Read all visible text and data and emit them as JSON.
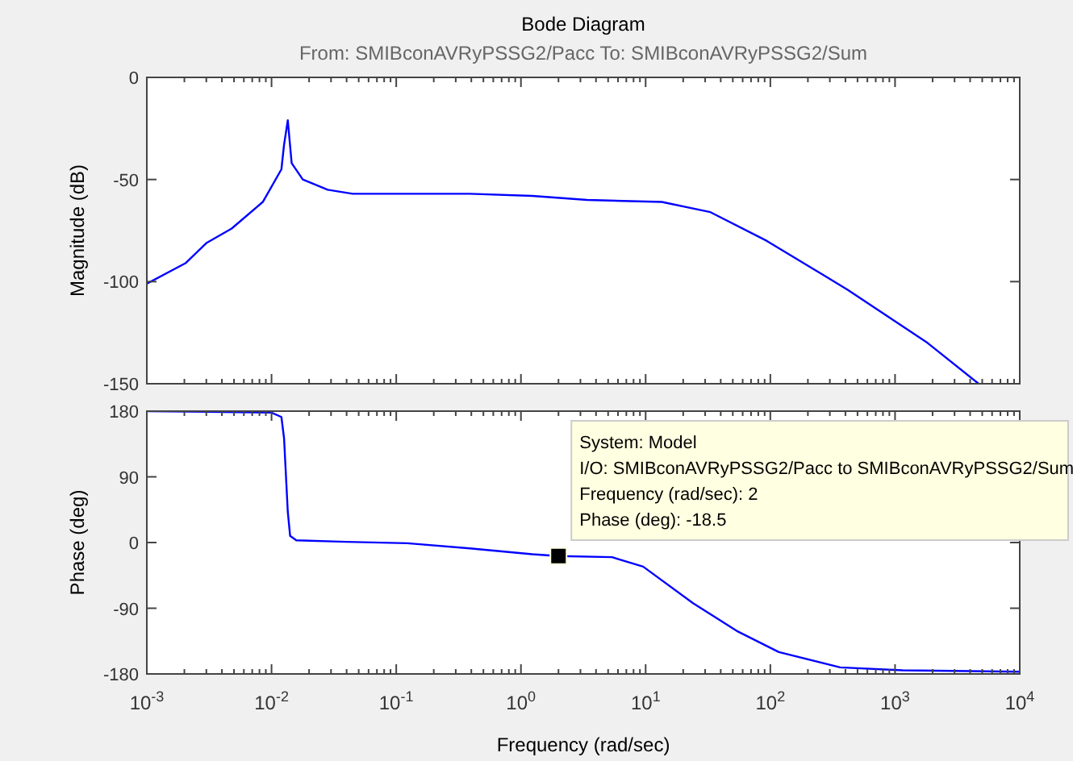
{
  "chart_data": [
    {
      "type": "line",
      "title": "Bode Diagram",
      "subtitle": "From: SMIBconAVRyPSSG2/Pacc  To: SMIBconAVRyPSSG2/Sum",
      "ylabel": "Magnitude (dB)",
      "log": "x",
      "grid": false,
      "tick_labels": "y",
      "xlim": [
        0.001,
        10000
      ],
      "xticks": [
        {
          "value": 0.001,
          "label": null
        },
        {
          "value": 0.01,
          "label": null
        },
        {
          "value": 0.1,
          "label": null
        },
        {
          "value": 1,
          "label": null
        },
        {
          "value": 10,
          "label": null
        },
        {
          "value": 100,
          "label": null
        },
        {
          "value": 1000,
          "label": null
        },
        {
          "value": 10000,
          "label": null
        }
      ],
      "ylim": [
        -150,
        0
      ],
      "yticks": [
        0,
        -50,
        -100,
        -150
      ],
      "series": [
        {
          "color": "#0000ff",
          "x": [
            0.001,
            0.00204,
            0.00302,
            0.00479,
            0.00851,
            0.012,
            0.0126,
            0.0135,
            0.0145,
            0.0178,
            0.0282,
            0.0447,
            0.389,
            1.23,
            3.39,
            13.5,
            33.1,
            93.3,
            417,
            1820,
            4680
          ],
          "values": [
            -101,
            -91,
            -81,
            -74,
            -61,
            -45,
            -33,
            -21,
            -42,
            -50,
            -55,
            -57,
            -57,
            -58,
            -60,
            -61,
            -66,
            -80,
            -104,
            -130,
            -150
          ]
        }
      ]
    },
    {
      "type": "line",
      "xlabel": "Frequency  (rad/sec)",
      "ylabel": "Phase (deg)",
      "log": "x",
      "grid": false,
      "xlim": [
        0.001,
        10000
      ],
      "xticks": [
        {
          "value": 0.001,
          "label": "10$^{-3}$"
        },
        {
          "value": 0.01,
          "label": "10$^{-2}$"
        },
        {
          "value": 0.1,
          "label": "10$^{-1}$"
        },
        {
          "value": 1,
          "label": "10$^{0}$"
        },
        {
          "value": 10,
          "label": "10$^{1}$"
        },
        {
          "value": 100,
          "label": "10$^{2}$"
        },
        {
          "value": 1000,
          "label": "10$^{3}$"
        },
        {
          "value": 10000,
          "label": "10$^{4}$"
        }
      ],
      "ylim": [
        -180,
        180
      ],
      "yticks": [
        180,
        90,
        0,
        -90,
        -180
      ],
      "series": [
        {
          "color": "#0000ff",
          "x": [
            0.001,
            0.01,
            0.012,
            0.0126,
            0.0135,
            0.0141,
            0.0158,
            0.0398,
            0.123,
            0.389,
            1.23,
            2,
            5.37,
            9.55,
            24.0,
            53.7,
            117,
            363,
            1150,
            10000
          ],
          "values": [
            180,
            178,
            172,
            143,
            42,
            9,
            3,
            1,
            -1,
            -8,
            -16,
            -18.5,
            -20,
            -33,
            -83,
            -121,
            -150,
            -171,
            -175,
            -177
          ]
        }
      ],
      "annotations": [
        {
          "text": "System: Model\nI/O: SMIBconAVRyPSSG2/Pacc to SMIBconAVRyPSSG2/Sum\nFrequency (rad/sec): 2\nPhase (deg): -18.5",
          "x": 2,
          "y": -18.5
        }
      ]
    }
  ]
}
